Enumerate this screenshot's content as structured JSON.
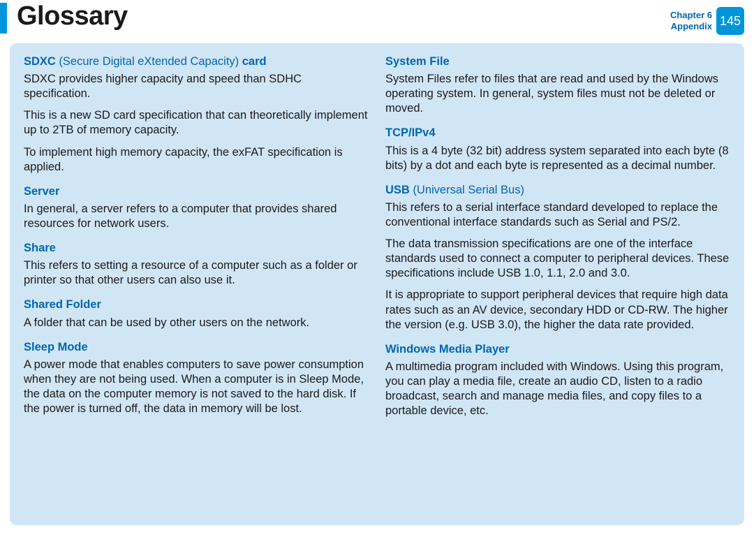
{
  "header": {
    "title": "Glossary",
    "chapter_line1": "Chapter 6",
    "chapter_line2": "Appendix",
    "page_number": "145",
    "accent_color": "#0095da",
    "link_color": "#0066b3"
  },
  "content": {
    "background_color": "#d1e6f5",
    "font_size_pt": 12,
    "columns": [
      {
        "entries": [
          {
            "term_bold1": "SDXC",
            "term_paren": " (Secure Digital eXtended Capacity) ",
            "term_bold2": "card",
            "paragraphs": [
              "SDXC provides higher capacity and speed than SDHC specification.",
              "This is a new SD card specification that can theoretically implement up to 2TB of memory capacity.",
              "To implement high memory capacity, the exFAT specification is applied."
            ]
          },
          {
            "term_bold1": "Server",
            "paragraphs": [
              "In general, a server refers to a computer that provides shared resources for network users."
            ]
          },
          {
            "term_bold1": "Share",
            "paragraphs": [
              "This refers to setting a resource of a computer such as a folder or printer so that other users can also use it."
            ]
          },
          {
            "term_bold1": "Shared Folder",
            "paragraphs": [
              "A folder that can be used by other users on the network."
            ]
          },
          {
            "term_bold1": "Sleep Mode",
            "paragraphs": [
              "A power mode that enables computers to save power consumption when they are not being used. When a computer is in Sleep Mode, the data on the computer memory is not saved to the hard disk. If the power is turned off, the data in memory will be lost."
            ]
          }
        ]
      },
      {
        "entries": [
          {
            "term_bold1": "System File",
            "paragraphs": [
              "System Files refer to files that are read and used by the Windows operating system. In general, system files must not be deleted or moved."
            ]
          },
          {
            "term_bold1": "TCP/IPv4",
            "paragraphs": [
              "This is a 4 byte (32 bit) address system separated into each byte (8 bits) by a dot and each byte is represented as a decimal number."
            ]
          },
          {
            "term_bold1": "USB",
            "term_paren": " (Universal Serial Bus)",
            "paragraphs": [
              "This refers to a serial interface standard developed to replace the conventional interface standards such as Serial and PS/2.",
              "The data transmission specifications are one of the interface standards used to connect a computer to peripheral devices. These specifications include USB 1.0, 1.1, 2.0 and 3.0.",
              "It is appropriate to support peripheral devices that require high data rates such as an AV device, secondary HDD or CD-RW. The higher the version (e.g. USB 3.0), the higher the data rate provided."
            ]
          },
          {
            "term_bold1": "Windows Media Player",
            "paragraphs": [
              "A multimedia program included with Windows. Using this program, you can play a media file, create an audio CD, listen to a radio broadcast, search and manage media files, and copy files to a portable device, etc."
            ]
          }
        ]
      }
    ]
  }
}
